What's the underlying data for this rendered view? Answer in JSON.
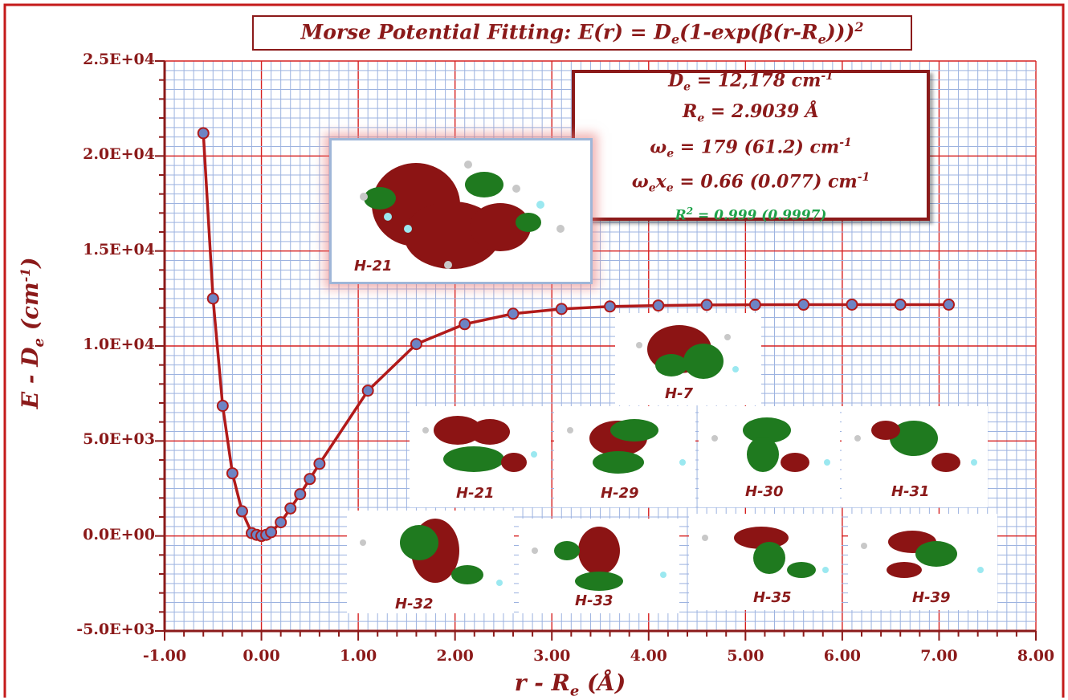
{
  "chart_data": {
    "type": "line",
    "title": "Morse Potential Fitting: E(r) = De(1-exp(β(r-Re)))²",
    "xlabel": "r - Re (Å)",
    "ylabel": "E - De (cm-1)",
    "xlim": [
      -1.0,
      8.0
    ],
    "ylim": [
      -5000,
      25000
    ],
    "x_ticks": [
      "-1.00",
      "0.00",
      "1.00",
      "2.00",
      "3.00",
      "4.00",
      "5.00",
      "6.00",
      "7.00",
      "8.00"
    ],
    "y_ticks": [
      "-5.0E+03",
      "0.0E+00",
      "5.0E+03",
      "1.0E+04",
      "1.5E+04",
      "2.0E+04",
      "2.5E+04"
    ],
    "grid": true,
    "series": [
      {
        "x": [
          -0.6,
          -0.5,
          -0.4,
          -0.3,
          -0.2,
          -0.1,
          -0.05,
          0.0,
          0.05,
          0.1,
          0.2,
          0.3,
          0.4,
          0.5,
          0.6,
          1.1,
          1.6,
          2.1,
          2.6,
          3.1,
          3.6,
          4.1,
          4.6,
          5.1,
          5.6,
          6.1,
          6.6,
          7.1
        ],
        "y": [
          21200,
          12500,
          6850,
          3300,
          1300,
          150,
          60,
          0,
          60,
          200,
          720,
          1450,
          2200,
          3000,
          3800,
          7650,
          10100,
          11150,
          11700,
          11950,
          12080,
          12130,
          12160,
          12170,
          12175,
          12178,
          12178,
          12178
        ],
        "color": "#b11a1a",
        "marker_color": "#6d84c4"
      }
    ]
  },
  "title_parts": {
    "a": "Morse Potential Fitting: E(r) = D",
    "a_sub": "e",
    "b": "(1-exp(β(r-R",
    "b_sub": "e",
    "c": ")))",
    "c_sup": "2"
  },
  "params": {
    "de_sym": "D",
    "de_sub": "e",
    "de_val": " = 12,178 cm",
    "de_sup": "-1",
    "re_sym": "R",
    "re_sub": "e",
    "re_val": " = 2.9039 Å",
    "we_sym": "ω",
    "we_sub": "e",
    "we_val": " = 179 (61.2) cm",
    "we_sup": "-1",
    "wexe_sym": "ω",
    "wexe_sub": "e",
    "wexe_x": "x",
    "wexe_sub2": "e",
    "wexe_val": " = 0.66 (0.077) cm",
    "wexe_sup": "-1",
    "r2_sym": "R",
    "r2_sup": "2",
    "r2_val": " = 0.999 (0.9997)"
  },
  "axis_text": {
    "x_a": "r - R",
    "x_sub": "e",
    "x_b": " (Å)",
    "y_a": "E - D",
    "y_sub": "e",
    "y_b": " (cm",
    "y_sup": "-1",
    "y_c": ")"
  },
  "orbitals": {
    "main_label": "H-21",
    "h7": "H-7",
    "h21": "H-21",
    "h29": "H-29",
    "h30": "H-30",
    "h31": "H-31",
    "h32": "H-32",
    "h33": "H-33",
    "h35": "H-35",
    "h39": "H-39"
  },
  "colors": {
    "frame": "#c41a1a",
    "axis": "#8b1a1a",
    "grid": "#9db3e0",
    "grid_major": "#d62020",
    "orbital_red": "#8c1414",
    "orbital_green": "#1f7a1f"
  }
}
